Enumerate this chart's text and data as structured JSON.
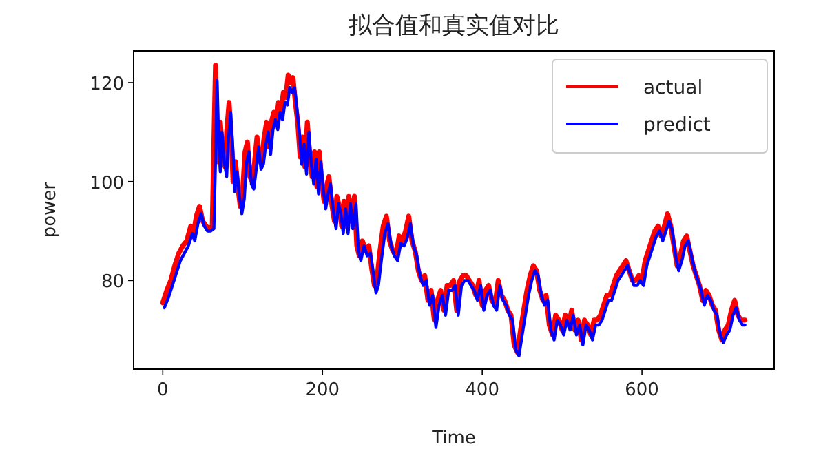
{
  "chart_data": {
    "type": "line",
    "title": "拟合值和真实值对比",
    "xlabel": "Time",
    "ylabel": "power",
    "xlim": [
      -36.5,
      765.5
    ],
    "ylim": [
      62.1,
      126.4
    ],
    "xticks": [
      0,
      200,
      400,
      600
    ],
    "yticks": [
      80,
      100,
      120
    ],
    "grid": false,
    "legend": "top right",
    "marker": "none",
    "line_style": "solid",
    "series": [
      {
        "name": "actual",
        "color": "#ff0000",
        "x": [
          0,
          5,
          10,
          15,
          20,
          25,
          30,
          35,
          38,
          42,
          46,
          50,
          54,
          58,
          62,
          64,
          66,
          68,
          70,
          72,
          75,
          78,
          80,
          83,
          86,
          88,
          91,
          94,
          97,
          100,
          103,
          106,
          109,
          112,
          115,
          118,
          121,
          124,
          127,
          130,
          133,
          136,
          139,
          142,
          145,
          148,
          151,
          154,
          157,
          160,
          163,
          166,
          169,
          172,
          175,
          178,
          181,
          184,
          187,
          190,
          193,
          196,
          199,
          202,
          205,
          208,
          212,
          215,
          218,
          221,
          224,
          227,
          230,
          233,
          236,
          240,
          243,
          246,
          250,
          254,
          258,
          262,
          265,
          268,
          272,
          276,
          280,
          284,
          288,
          292,
          296,
          300,
          304,
          308,
          312,
          316,
          320,
          324,
          328,
          332,
          336,
          340,
          344,
          348,
          352,
          356,
          360,
          364,
          368,
          372,
          376,
          380,
          384,
          388,
          392,
          396,
          400,
          404,
          408,
          412,
          416,
          420,
          424,
          428,
          432,
          436,
          440,
          444,
          448,
          452,
          456,
          460,
          464,
          468,
          472,
          476,
          480,
          484,
          488,
          492,
          496,
          500,
          504,
          508,
          512,
          516,
          520,
          524,
          528,
          532,
          536,
          540,
          544,
          548,
          552,
          556,
          560,
          564,
          568,
          572,
          576,
          580,
          584,
          588,
          592,
          596,
          600,
          604,
          608,
          612,
          616,
          620,
          624,
          628,
          632,
          636,
          640,
          644,
          648,
          652,
          656,
          660,
          664,
          668,
          672,
          676,
          680,
          684,
          688,
          692,
          696,
          700,
          704,
          708,
          712,
          716,
          720,
          724,
          729
        ],
        "values": [
          75.5,
          78,
          80,
          83,
          85.5,
          87,
          88,
          91,
          89,
          93,
          95,
          92,
          91,
          90.5,
          91,
          108,
          123.5,
          110,
          104,
          112,
          106,
          103,
          110,
          116,
          108,
          100,
          104,
          99,
          95,
          98,
          106,
          108,
          101,
          100,
          104,
          109,
          104,
          105,
          109,
          112,
          107,
          112,
          114,
          112,
          116,
          114,
          118,
          117,
          121.5,
          120,
          121,
          116,
          112,
          105,
          109,
          103,
          112,
          105,
          101,
          106,
          99,
          106,
          100,
          96,
          99,
          101,
          95,
          92,
          97,
          95,
          91,
          96,
          91,
          97,
          92,
          97,
          87,
          85,
          88,
          86,
          87,
          82,
          79,
          80,
          86,
          91,
          93,
          88,
          86,
          85,
          89,
          88,
          90,
          93,
          88,
          86,
          82,
          80,
          81,
          76,
          78,
          72,
          76,
          78,
          74,
          79,
          79,
          80,
          74,
          80,
          81,
          81,
          80,
          79,
          77,
          80,
          75,
          78,
          79,
          76,
          75,
          80,
          77,
          76,
          74,
          73,
          67,
          65.5,
          70,
          74,
          78,
          81,
          83,
          82,
          78,
          76,
          77,
          71,
          69,
          73,
          72,
          70,
          73,
          71,
          74,
          70,
          72,
          68,
          72,
          71,
          69,
          72,
          72,
          73,
          75,
          77,
          77,
          79,
          81,
          82,
          83,
          84,
          82,
          80,
          80,
          81,
          80,
          84,
          86,
          88,
          90,
          91,
          89,
          91,
          93.5,
          91,
          87,
          83,
          85,
          88,
          89,
          86,
          83,
          81,
          79,
          76,
          78,
          77,
          75,
          74,
          70,
          68,
          70,
          71,
          74,
          76,
          73,
          72,
          72
        ]
      },
      {
        "name": "predict",
        "color": "#0000ff",
        "x": [
          2,
          7,
          12,
          17,
          22,
          27,
          32,
          37,
          40,
          44,
          48,
          52,
          56,
          60,
          64,
          66,
          68,
          70,
          72,
          74,
          77,
          80,
          82,
          85,
          88,
          90,
          93,
          96,
          99,
          102,
          105,
          108,
          111,
          114,
          117,
          120,
          123,
          126,
          129,
          132,
          135,
          138,
          141,
          144,
          147,
          150,
          153,
          156,
          159,
          162,
          165,
          168,
          171,
          174,
          177,
          180,
          183,
          186,
          189,
          192,
          195,
          198,
          201,
          204,
          207,
          210,
          214,
          217,
          220,
          223,
          226,
          229,
          232,
          235,
          238,
          242,
          245,
          248,
          252,
          256,
          260,
          264,
          267,
          270,
          274,
          278,
          282,
          286,
          290,
          294,
          298,
          302,
          306,
          310,
          314,
          318,
          322,
          326,
          330,
          334,
          338,
          342,
          346,
          350,
          354,
          358,
          362,
          366,
          370,
          374,
          378,
          382,
          386,
          390,
          394,
          398,
          402,
          406,
          410,
          414,
          418,
          422,
          426,
          430,
          434,
          438,
          442,
          446,
          450,
          454,
          458,
          462,
          466,
          470,
          474,
          478,
          482,
          486,
          490,
          494,
          498,
          502,
          506,
          510,
          514,
          518,
          522,
          526,
          530,
          534,
          538,
          542,
          546,
          550,
          554,
          558,
          562,
          566,
          570,
          574,
          578,
          582,
          586,
          590,
          594,
          598,
          602,
          606,
          610,
          614,
          618,
          622,
          626,
          630,
          634,
          638,
          642,
          646,
          650,
          654,
          658,
          662,
          666,
          670,
          674,
          678,
          682,
          686,
          690,
          694,
          698,
          702,
          706,
          710,
          714,
          718,
          722,
          726,
          729
        ],
        "values": [
          74.5,
          76.5,
          79,
          81.5,
          84,
          85.5,
          87,
          89.5,
          88,
          91.5,
          93.5,
          91,
          90,
          90,
          90.5,
          104,
          120.5,
          108,
          102,
          110,
          104,
          101,
          108,
          114,
          106,
          98,
          102,
          97,
          93.5,
          96.5,
          104,
          106,
          99.5,
          98.5,
          102.5,
          107,
          102.5,
          103.5,
          107.5,
          110,
          105.5,
          110.5,
          112.5,
          110.5,
          114,
          112.5,
          116,
          115.5,
          119,
          118,
          119,
          114.5,
          110,
          103.5,
          107.5,
          101.5,
          110,
          103.5,
          99.5,
          104.5,
          97.5,
          104,
          98.5,
          94.5,
          97.5,
          99.5,
          93.5,
          90.5,
          95.5,
          93.5,
          89.5,
          94.5,
          89.5,
          95.5,
          90.5,
          95.5,
          86,
          84,
          87,
          85,
          85.5,
          81,
          77.5,
          79,
          84.5,
          89.5,
          91.5,
          87,
          85,
          84,
          87.5,
          87,
          88.5,
          91.5,
          87,
          85,
          81,
          79,
          80,
          75,
          77,
          70.5,
          75,
          77,
          73,
          78,
          78,
          79,
          73,
          79,
          80,
          80,
          79,
          78,
          76,
          79,
          74,
          77,
          78,
          75,
          74,
          79,
          76,
          75,
          73,
          72,
          66,
          64.8,
          69,
          73,
          77,
          80,
          82,
          81,
          77,
          75,
          76,
          70,
          68,
          72,
          71,
          69,
          72,
          70,
          73,
          69,
          71,
          67,
          71,
          70,
          68,
          71,
          71,
          72,
          74,
          76,
          76,
          78,
          80,
          81,
          82,
          83,
          81,
          79,
          79,
          80,
          79,
          83,
          85,
          87,
          89,
          90,
          88,
          90,
          92,
          90,
          85,
          82,
          84,
          87,
          88,
          85,
          82,
          80,
          78,
          75,
          77,
          76,
          74,
          73,
          69,
          67.5,
          69,
          70,
          73,
          74.5,
          72,
          71,
          71
        ]
      }
    ]
  }
}
